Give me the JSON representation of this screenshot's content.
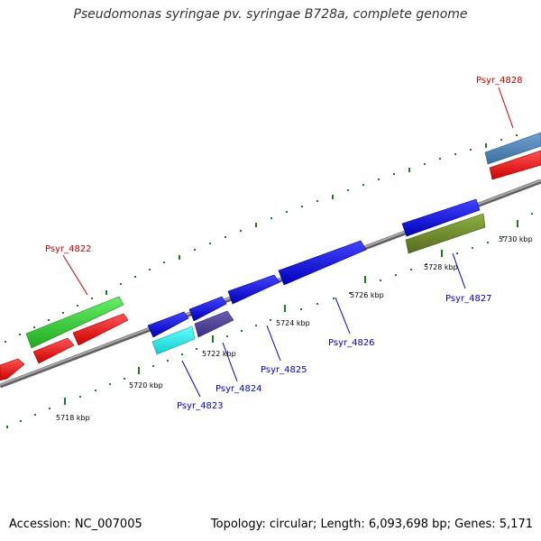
{
  "title": "Pseudomonas syringae pv. syringae B728a, complete genome",
  "footer": {
    "accession": "Accession: NC_007005",
    "summary": "Topology: circular; Length: 6,093,698 bp; Genes: 5,171"
  },
  "ticks": [
    {
      "label": "5718 kbp"
    },
    {
      "label": "5720 kbp"
    },
    {
      "label": "5722 kbp"
    },
    {
      "label": "5724 kbp"
    },
    {
      "label": "5726 kbp"
    },
    {
      "label": "5728 kbp"
    },
    {
      "label": "5730 kbp"
    }
  ],
  "genes": [
    {
      "name": "Psyr_4822",
      "color": "#cc0000"
    },
    {
      "name": "Psyr_4823",
      "color": "#0000cc"
    },
    {
      "name": "Psyr_4824",
      "color": "#0000cc"
    },
    {
      "name": "Psyr_4825",
      "color": "#0000cc"
    },
    {
      "name": "Psyr_4826",
      "color": "#0000cc"
    },
    {
      "name": "Psyr_4827",
      "color": "#0000cc"
    },
    {
      "name": "Psyr_4828",
      "color": "#cc0000"
    }
  ],
  "colors": {
    "backbone": "#808080",
    "tick": "#1e7a1e",
    "red_feature": "#ee1111",
    "green_feature": "#33cc33",
    "blue_feature": "#1111ee",
    "cyan_feature": "#22eeee",
    "purple_feature": "#4a3f8f",
    "olive_feature": "#6b8e23",
    "steel_feature": "#4682b4"
  }
}
